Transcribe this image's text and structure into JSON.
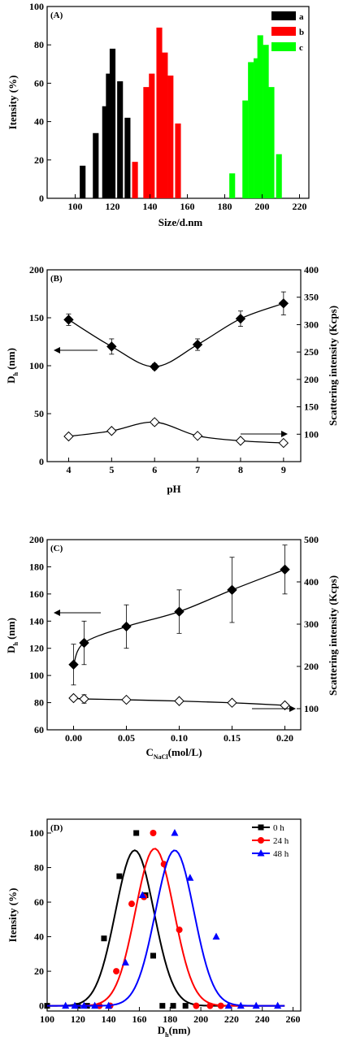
{
  "chart_data": [
    {
      "type": "bar",
      "panel": "(A)",
      "xlabel": "Size/d.nm",
      "ylabel": "Itensity (%)",
      "xlim": [
        85,
        225
      ],
      "ylim": [
        0,
        100
      ],
      "xticks": [
        "100",
        "120",
        "140",
        "160",
        "180",
        "200",
        "220"
      ],
      "yticks": [
        "0",
        "20",
        "40",
        "60",
        "80",
        "100"
      ],
      "legend_position": "top-right",
      "series": [
        {
          "name": "a",
          "color": "#000000",
          "x": [
            104,
            111,
            116,
            118,
            120,
            124,
            128
          ],
          "values": [
            17,
            34,
            48,
            65,
            78,
            61,
            42
          ]
        },
        {
          "name": "b",
          "color": "#ff0000",
          "x": [
            132,
            138,
            141,
            145,
            148,
            151,
            155
          ],
          "values": [
            19,
            58,
            65,
            89,
            76,
            64,
            39
          ]
        },
        {
          "name": "c",
          "color": "#00ff00",
          "x": [
            184,
            191,
            194,
            197,
            199,
            202,
            205,
            209
          ],
          "values": [
            13,
            51,
            71,
            73,
            85,
            80,
            58,
            23
          ]
        }
      ]
    },
    {
      "type": "scatter",
      "panel": "(B)",
      "xlabel": "pH",
      "ylabel": "Dh (nm)",
      "ylabel_main": "D",
      "ylabel_sub": "h",
      "ylabel_tail": " (nm)",
      "y2label": "Scattering intensity (Kcps)",
      "xlim": [
        3.5,
        9.4
      ],
      "ylim": [
        0,
        200
      ],
      "y2lim": [
        50,
        400
      ],
      "xticks": [
        "4",
        "5",
        "6",
        "7",
        "8",
        "9"
      ],
      "yticks": [
        "0",
        "50",
        "100",
        "150",
        "200"
      ],
      "y2ticks": [
        "100",
        "150",
        "200",
        "250",
        "300",
        "350",
        "400"
      ],
      "series": [
        {
          "axis": "left",
          "marker": "filled-diamond",
          "x": [
            4,
            5,
            6,
            7,
            8,
            9
          ],
          "y": [
            148,
            120,
            99,
            122,
            149,
            165
          ],
          "err": [
            6,
            8,
            3,
            6,
            8,
            12
          ]
        },
        {
          "axis": "right",
          "marker": "open-diamond",
          "x": [
            4,
            5,
            6,
            7,
            8,
            9
          ],
          "y": [
            96,
            106,
            122,
            97,
            88,
            84
          ],
          "err": [
            3,
            4,
            5,
            4,
            4,
            3
          ]
        }
      ]
    },
    {
      "type": "scatter",
      "panel": "(C)",
      "xlabel": "CNaCl(mol/L)",
      "xlabel_main": "C",
      "xlabel_sub": "NaCl",
      "xlabel_tail": "(mol/L)",
      "ylabel": "Dh (nm)",
      "ylabel_main": "D",
      "ylabel_sub": "h",
      "ylabel_tail": " (nm)",
      "y2label": "Scattering intensity (Kcps)",
      "xlim": [
        -0.025,
        0.215
      ],
      "ylim": [
        60,
        200
      ],
      "y2lim": [
        50,
        500
      ],
      "xticks": [
        "0.00",
        "0.05",
        "0.10",
        "0.15",
        "0.20"
      ],
      "yticks": [
        "60",
        "80",
        "100",
        "120",
        "140",
        "160",
        "180",
        "200"
      ],
      "y2ticks": [
        "100",
        "200",
        "300",
        "400",
        "500"
      ],
      "series": [
        {
          "axis": "left",
          "marker": "filled-diamond",
          "x": [
            0,
            0.01,
            0.05,
            0.1,
            0.15,
            0.2
          ],
          "y": [
            108,
            124,
            136,
            147,
            163,
            178
          ],
          "err": [
            15,
            16,
            16,
            16,
            24,
            18
          ]
        },
        {
          "axis": "right",
          "marker": "open-diamond",
          "x": [
            0,
            0.01,
            0.05,
            0.1,
            0.15,
            0.2
          ],
          "y": [
            125,
            123,
            121,
            118,
            114,
            108
          ],
          "err": [
            6,
            10,
            5,
            5,
            4,
            4
          ]
        }
      ]
    },
    {
      "type": "line",
      "panel": "(D)",
      "xlabel": "Dh(nm)",
      "xlabel_main": "D",
      "xlabel_sub": "h",
      "xlabel_tail": "(nm)",
      "ylabel": "Itensity (%)",
      "xlim": [
        100,
        265
      ],
      "ylim": [
        -3,
        108
      ],
      "xticks": [
        "100",
        "120",
        "140",
        "160",
        "180",
        "200",
        "220",
        "240",
        "260"
      ],
      "yticks": [
        "0",
        "20",
        "40",
        "60",
        "80",
        "100"
      ],
      "legend_position": "top-right",
      "series": [
        {
          "name": "0 h",
          "color": "#000000",
          "marker": "square",
          "x": [
            100,
            120,
            126,
            132,
            137,
            142,
            152,
            158,
            164,
            170,
            176,
            180,
            188,
            205,
            250
          ],
          "y": [
            0,
            0,
            0,
            39,
            75,
            99,
            90,
            100,
            74,
            29,
            0,
            0,
            0,
            0,
            0
          ],
          "points_x": [
            100,
            120,
            126,
            137,
            147,
            158,
            164,
            169,
            175,
            182,
            190
          ],
          "points_y": [
            0,
            0,
            0,
            39,
            75,
            100,
            64,
            29,
            0,
            0,
            0
          ],
          "curve_center": 157,
          "curve_amp": 90
        },
        {
          "name": "24 h",
          "color": "#ff0000",
          "marker": "circle",
          "x": [
            130,
            141,
            145,
            152,
            158,
            165,
            170,
            176,
            182,
            188,
            196,
            205,
            212
          ],
          "y": [
            0,
            0,
            20,
            59,
            100,
            63,
            100,
            82,
            44,
            0,
            0,
            0,
            0
          ],
          "points_x": [
            134,
            141,
            145,
            155,
            163,
            169,
            176,
            186,
            197,
            206,
            213
          ],
          "points_y": [
            0,
            0,
            20,
            59,
            63,
            100,
            82,
            44,
            0,
            0,
            0
          ],
          "curve_center": 170,
          "curve_amp": 91
        },
        {
          "name": "48 h",
          "color": "#0000ff",
          "marker": "triangle",
          "x": [
            112,
            118,
            130,
            140,
            152,
            163,
            172,
            183,
            193,
            200,
            210,
            216,
            222,
            235,
            250
          ],
          "y": [
            0,
            0,
            0,
            0,
            25,
            64,
            80,
            100,
            74,
            60,
            40,
            0,
            0,
            0,
            0
          ],
          "points_x": [
            112,
            118,
            124,
            131,
            140,
            151,
            162,
            183,
            193,
            210,
            218,
            226,
            236,
            250
          ],
          "points_y": [
            0,
            0,
            0,
            0,
            0,
            25,
            64,
            100,
            74,
            40,
            0,
            0,
            0,
            0
          ],
          "curve_center": 183,
          "curve_amp": 90
        }
      ]
    }
  ]
}
